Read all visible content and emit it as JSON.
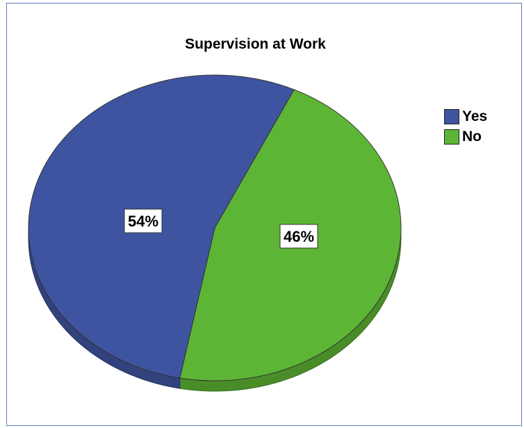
{
  "chart_data": {
    "type": "pie",
    "title": "Supervision at Work",
    "categories": [
      "Yes",
      "No"
    ],
    "values": [
      54,
      46
    ],
    "labels": [
      "54%",
      "46%"
    ],
    "colors": [
      "#3f54a0",
      "#5db535"
    ],
    "legend_position": "right"
  }
}
